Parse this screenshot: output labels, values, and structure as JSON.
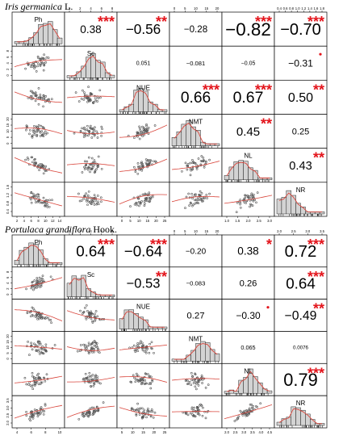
{
  "titles": {
    "top_species": "Iris germanica",
    "top_author": " L.",
    "bottom_species": "Portulaca grandiflora",
    "bottom_author": " Hook."
  },
  "colors": {
    "sig": "#e3141b",
    "fit": "#d9463c",
    "hist": "#d3d3d3",
    "point": "#555555"
  },
  "chart_data": [
    {
      "type": "scatter-matrix",
      "title": "Iris germanica L.",
      "variables": [
        "Ph",
        "Sc",
        "NUE",
        "NMT",
        "NL",
        "NR"
      ],
      "top_axis_ticks": {
        "1": [
          "0",
          "2",
          "4",
          "6",
          "8"
        ],
        "3": [
          "0",
          "5",
          "10",
          "15",
          "20"
        ],
        "5": [
          "0.4",
          "0.6",
          "0.8",
          "1.0",
          "1.2",
          "1.4",
          "1.6",
          "1.8"
        ]
      },
      "bottom_axis_ticks": {
        "0": [
          "2",
          "4",
          "6",
          "8",
          "10",
          "12",
          "14"
        ],
        "2": [
          "0",
          "5",
          "10",
          "15",
          "20",
          "25"
        ],
        "4": [
          "1.0",
          "1.5",
          "2.0",
          "2.5",
          "3.0"
        ]
      },
      "left_axis_ticks": {
        "1": [
          "0",
          "2",
          "4",
          "6",
          "8"
        ],
        "3": [
          "0",
          "5",
          "10",
          "15",
          "20"
        ],
        "5": [
          "0.4",
          "0.8",
          "1.2",
          "1.6"
        ]
      },
      "correlations": [
        {
          "row": 0,
          "col": 1,
          "r": "0.38",
          "stars": "***"
        },
        {
          "row": 0,
          "col": 2,
          "r": "−0.56",
          "stars": "**"
        },
        {
          "row": 0,
          "col": 3,
          "r": "−0.28",
          "stars": ""
        },
        {
          "row": 0,
          "col": 4,
          "r": "−0.82",
          "stars": "***"
        },
        {
          "row": 0,
          "col": 5,
          "r": "−0.70",
          "stars": "***"
        },
        {
          "row": 1,
          "col": 2,
          "r": "0.051",
          "stars": ""
        },
        {
          "row": 1,
          "col": 3,
          "r": "−0.081",
          "stars": ""
        },
        {
          "row": 1,
          "col": 4,
          "r": "−0.05",
          "stars": ""
        },
        {
          "row": 1,
          "col": 5,
          "r": "−0.31",
          "stars": "."
        },
        {
          "row": 2,
          "col": 3,
          "r": "0.66",
          "stars": "***"
        },
        {
          "row": 2,
          "col": 4,
          "r": "0.67",
          "stars": "***"
        },
        {
          "row": 2,
          "col": 5,
          "r": "0.50",
          "stars": "**"
        },
        {
          "row": 3,
          "col": 4,
          "r": "0.45",
          "stars": "**"
        },
        {
          "row": 3,
          "col": 5,
          "r": "0.25",
          "stars": ""
        },
        {
          "row": 4,
          "col": 5,
          "r": "0.43",
          "stars": "**"
        }
      ]
    },
    {
      "type": "scatter-matrix",
      "title": "Portulaca grandiflora Hook.",
      "variables": [
        "Ph",
        "Sc",
        "NUE",
        "NMT",
        "NL",
        "NR"
      ],
      "top_axis_ticks": {
        "1": [
          "0",
          "2",
          "4",
          "6",
          "8"
        ],
        "3": [
          "0",
          "5",
          "10",
          "15",
          "20"
        ],
        "5": [
          "2.0",
          "2.5",
          "3.0",
          "3.5"
        ]
      },
      "bottom_axis_ticks": {
        "0": [
          "4",
          "6",
          "8",
          "10"
        ],
        "2": [
          "5",
          "10",
          "15",
          "20",
          "25"
        ],
        "4": [
          "2.0",
          "2.5",
          "3.0",
          "3.5",
          "4.0",
          "4.5"
        ]
      },
      "left_axis_ticks": {
        "1": [
          "0",
          "2",
          "4",
          "6",
          "8"
        ],
        "3": [
          "0",
          "5",
          "10",
          "15",
          "20"
        ],
        "5": [
          "2.0",
          "2.5",
          "3.0",
          "3.5"
        ]
      },
      "correlations": [
        {
          "row": 0,
          "col": 1,
          "r": "0.64",
          "stars": "***"
        },
        {
          "row": 0,
          "col": 2,
          "r": "−0.64",
          "stars": "***"
        },
        {
          "row": 0,
          "col": 3,
          "r": "−0.20",
          "stars": ""
        },
        {
          "row": 0,
          "col": 4,
          "r": "0.38",
          "stars": "*"
        },
        {
          "row": 0,
          "col": 5,
          "r": "0.72",
          "stars": "***"
        },
        {
          "row": 1,
          "col": 2,
          "r": "−0.53",
          "stars": "**"
        },
        {
          "row": 1,
          "col": 3,
          "r": "−0.083",
          "stars": ""
        },
        {
          "row": 1,
          "col": 4,
          "r": "0.26",
          "stars": ""
        },
        {
          "row": 1,
          "col": 5,
          "r": "0.64",
          "stars": "***"
        },
        {
          "row": 2,
          "col": 3,
          "r": "0.27",
          "stars": ""
        },
        {
          "row": 2,
          "col": 4,
          "r": "−0.30",
          "stars": "."
        },
        {
          "row": 2,
          "col": 5,
          "r": "−0.49",
          "stars": "**"
        },
        {
          "row": 3,
          "col": 4,
          "r": "0.065",
          "stars": ""
        },
        {
          "row": 3,
          "col": 5,
          "r": "0.0076",
          "stars": ""
        },
        {
          "row": 4,
          "col": 5,
          "r": "0.79",
          "stars": "***"
        }
      ]
    }
  ]
}
